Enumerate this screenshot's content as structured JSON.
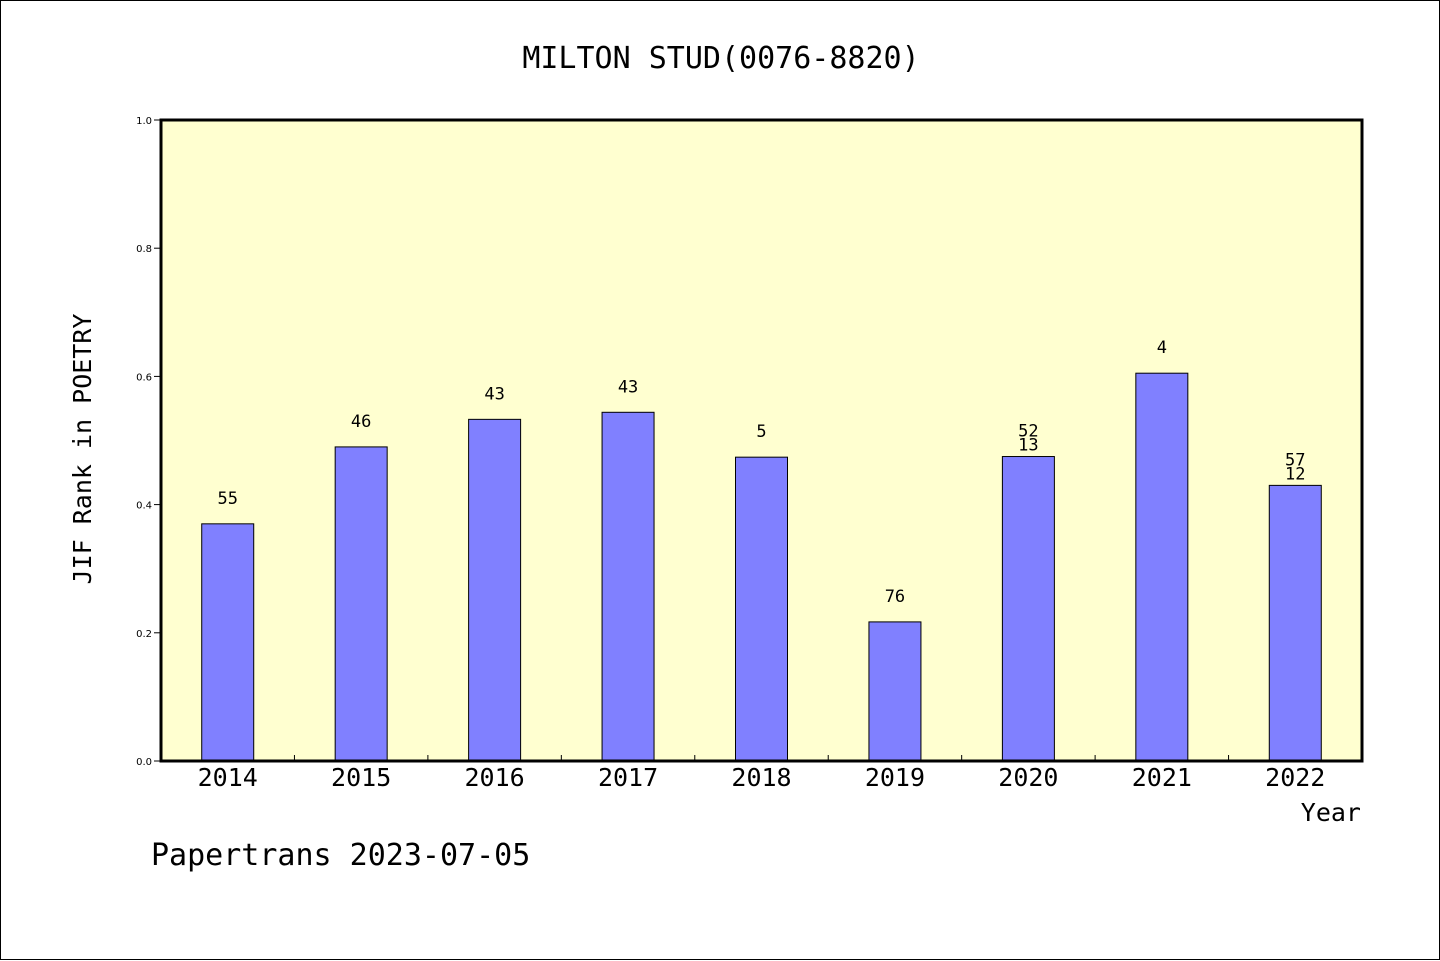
{
  "chart_data": {
    "type": "bar",
    "title": "MILTON STUD(0076-8820)",
    "xlabel": "Year",
    "ylabel": "JIF Rank in POETRY",
    "ylim": [
      0,
      1.0
    ],
    "yticks": [
      "0.0",
      "0.2",
      "0.4",
      "0.6",
      "0.8",
      "1.0"
    ],
    "categories": [
      "2014",
      "2015",
      "2016",
      "2017",
      "2018",
      "2019",
      "2020",
      "2021",
      "2022"
    ],
    "values": [
      0.37,
      0.49,
      0.533,
      0.544,
      0.474,
      0.217,
      0.475,
      0.605,
      0.43
    ],
    "bar_labels": [
      [
        "55"
      ],
      [
        "46"
      ],
      [
        "43"
      ],
      [
        "43"
      ],
      [
        "5"
      ],
      [
        "76"
      ],
      [
        "52",
        "13"
      ],
      [
        "4"
      ],
      [
        "57",
        "12"
      ]
    ],
    "grid": false,
    "colors": {
      "plot_bg": "#ffffd0",
      "bar_fill": "#8080ff",
      "bar_stroke": "#000000"
    }
  },
  "footer": "Papertrans 2023-07-05"
}
